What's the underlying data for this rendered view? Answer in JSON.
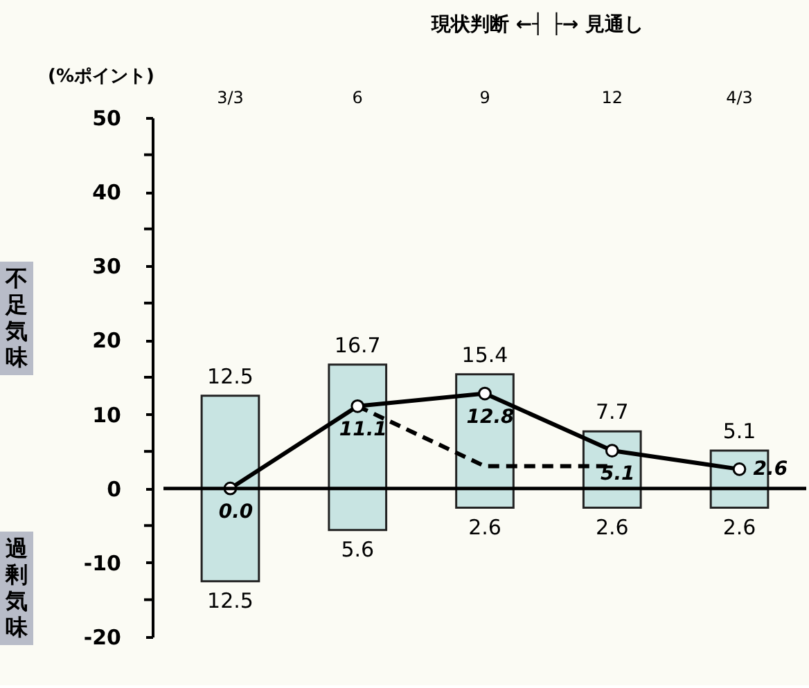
{
  "chart_data": {
    "type": "bar",
    "stacked": true,
    "ylabel": "(%ポイント)",
    "annotations": [
      "現状判断 ←┤ ├→ 見通し",
      "不足気味",
      "過剰気味",
      {
        "text": "12.5",
        "x": "3/3",
        "y": -12.5
      },
      {
        "text": "5.6",
        "x": "6",
        "y": -5.6
      },
      {
        "text": "2.6",
        "x": "9",
        "y": -2.6
      },
      {
        "text": "2.6",
        "x": "12",
        "y": -2.6
      },
      {
        "text": "2.6",
        "x": "4/3",
        "y": -2.6
      }
    ],
    "categories": [
      "3/3",
      "6",
      "9",
      "12",
      "4/3"
    ],
    "series": [
      {
        "color": "#c8e4e2",
        "values": [
          12.5,
          16.7,
          15.4,
          7.7,
          5.1
        ],
        "value_labels": [
          "12.5",
          "16.7",
          "15.4",
          "7.7",
          "5.1"
        ]
      },
      {
        "color": "#c8e4e2",
        "values": [
          -12.5,
          -5.6,
          -2.6,
          -2.6,
          -2.6
        ]
      },
      {
        "type": "line",
        "color": "#000000",
        "marker": "circle",
        "line_style": "solid",
        "values": [
          0.0,
          11.1,
          12.8,
          5.1,
          2.6
        ],
        "value_labels": [
          "0.0",
          "11.1",
          "12.8",
          "5.1",
          "2.6"
        ]
      },
      {
        "type": "line",
        "color": "#000000",
        "marker": "none",
        "line_style": "dashed",
        "values": [
          null,
          11.1,
          3.0,
          3.0,
          null
        ]
      }
    ],
    "ylim": [
      -20,
      50
    ],
    "yticks": [
      -20,
      {
        "value": -15,
        "label": null
      },
      -10,
      {
        "value": -5,
        "label": null
      },
      0,
      {
        "value": 5,
        "label": null
      },
      10,
      {
        "value": 15,
        "label": null
      },
      20,
      {
        "value": 25,
        "label": null
      },
      30,
      {
        "value": 35,
        "label": null
      },
      40,
      {
        "value": 45,
        "label": null
      },
      50
    ],
    "ref_lines": [
      {
        "axis": "y",
        "value": 0,
        "color": "#000000"
      }
    ],
    "grid": false
  }
}
